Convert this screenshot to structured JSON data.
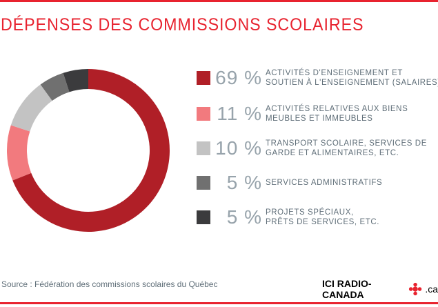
{
  "title": "DÉPENSES DES COMMISSIONS SCOLAIRES",
  "chart_data": {
    "type": "pie",
    "variant": "donut",
    "title": "DÉPENSES DES COMMISSIONS SCOLAIRES",
    "start": "top, clockwise",
    "slices": [
      {
        "label": "ACTIVITÉS D'ENSEIGNEMENT ET\nSOUTIEN À L'ENSEIGNEMENT (SALAIRES)",
        "value": 69,
        "display": "69 %",
        "color": "#b01f27"
      },
      {
        "label": "ACTIVITÉS RELATIVES AUX BIENS\nMEUBLES ET IMMEUBLES",
        "value": 11,
        "display": "11 %",
        "color": "#f27a7e"
      },
      {
        "label": "TRANSPORT SCOLAIRE, SERVICES DE\nGARDE ET ALIMENTAIRES, ETC.",
        "value": 10,
        "display": "10 %",
        "color": "#c3c3c3"
      },
      {
        "label": "SERVICES ADMINISTRATIFS",
        "value": 5,
        "display": "5 %",
        "color": "#707070"
      },
      {
        "label": "PROJETS SPÉCIAUX,\nPRÊTS DE SERVICES, ETC.",
        "value": 5,
        "display": "5 %",
        "color": "#3b3b3d"
      }
    ],
    "legend": "right"
  },
  "source": "Source : Fédération des commissions scolaires du Québec",
  "logo": {
    "text": "ICI RADIO-CANADA",
    "suffix": ".ca"
  },
  "colors": {
    "accent": "#e8232f"
  }
}
